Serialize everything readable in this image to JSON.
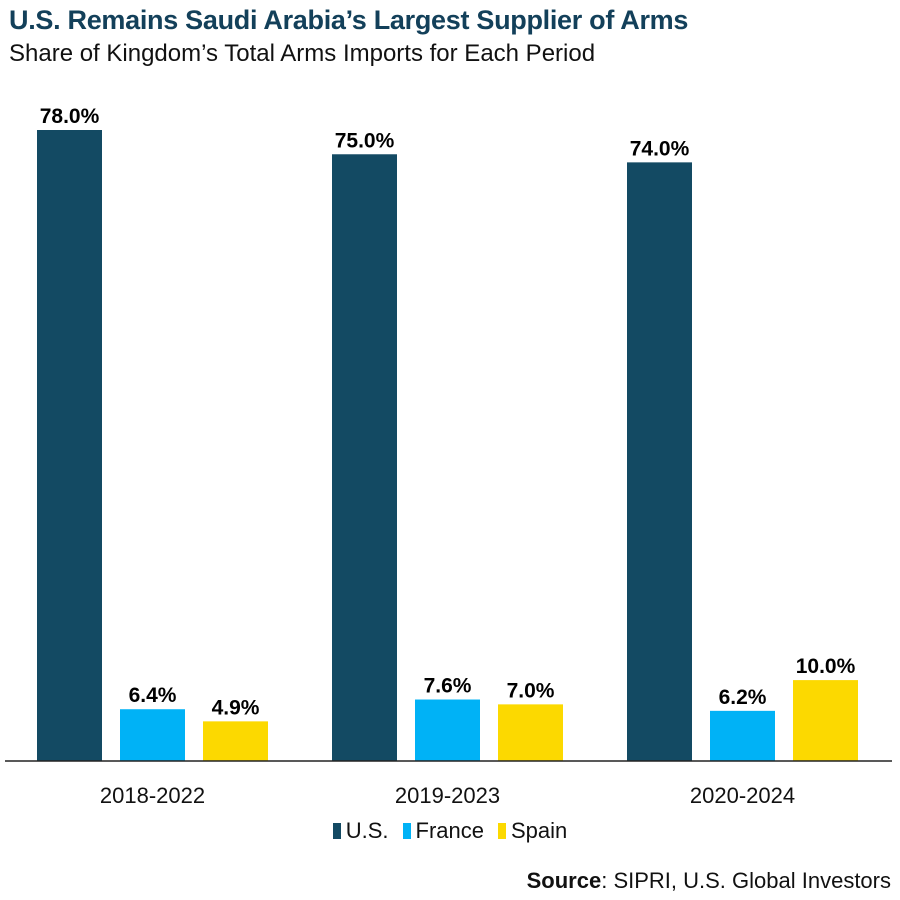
{
  "title": "U.S. Remains Saudi Arabia’s Largest Supplier of Arms",
  "subtitle": "Share of Kingdom’s Total Arms Imports for Each Period",
  "source": {
    "label": "Source",
    "text": ": SIPRI, U.S. Global Investors"
  },
  "chart_data": {
    "type": "bar",
    "title": "U.S. Remains Saudi Arabia’s Largest Supplier of Arms",
    "subtitle": "Share of Kingdom’s Total Arms Imports for Each Period",
    "categories": [
      "2018-2022",
      "2019-2023",
      "2020-2024"
    ],
    "series": [
      {
        "name": "U.S.",
        "color": "#134a63",
        "values": [
          78.0,
          75.0,
          74.0
        ],
        "labels": [
          "78.0%",
          "75.0%",
          "74.0%"
        ]
      },
      {
        "name": "France",
        "color": "#00b2f6",
        "values": [
          6.4,
          7.6,
          6.2
        ],
        "labels": [
          "6.4%",
          "7.6%",
          "6.2%"
        ]
      },
      {
        "name": "Spain",
        "color": "#fcd900",
        "values": [
          4.9,
          7.0,
          10.0
        ],
        "labels": [
          "4.9%",
          "7.0%",
          "10.0%"
        ]
      }
    ],
    "ylim": [
      0,
      80
    ],
    "grid": false,
    "legend": "bottom-center"
  }
}
